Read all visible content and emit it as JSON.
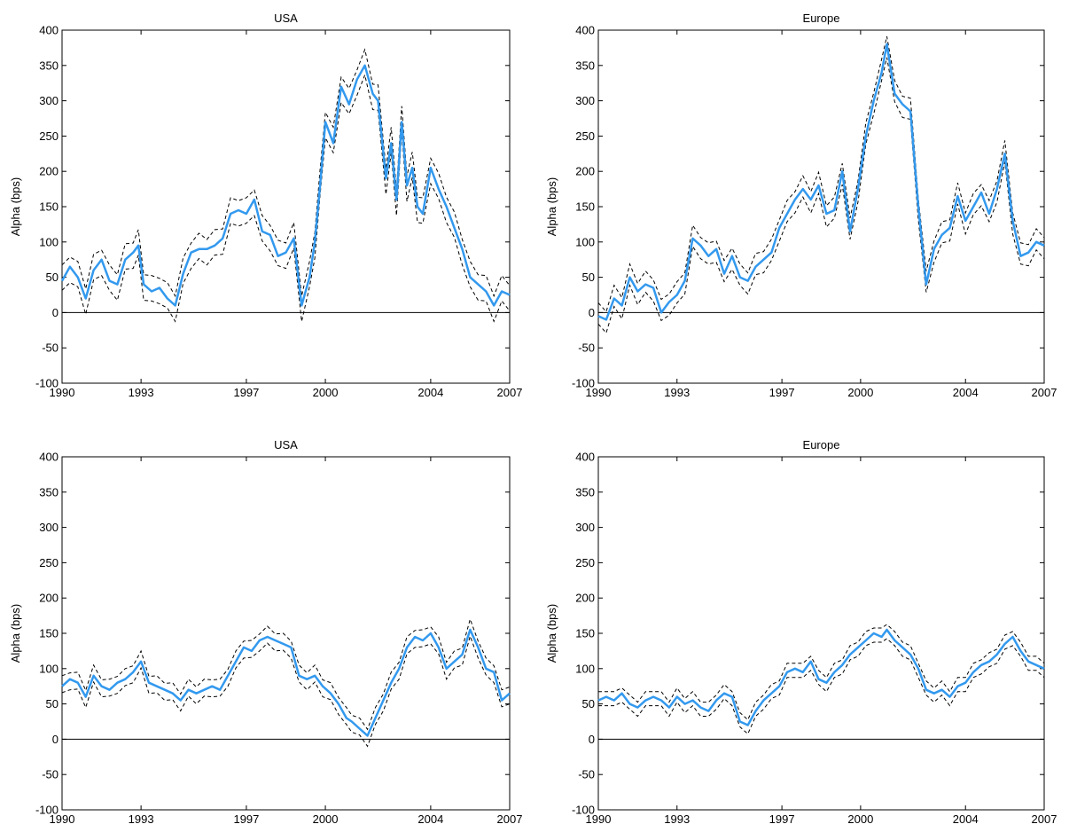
{
  "colors": {
    "mean_line": "#3399ee",
    "band_line": "#000000",
    "axis": "#000000",
    "zero_line": "#000000"
  },
  "chart_data": [
    {
      "type": "line",
      "title": "USA",
      "xlabel": "",
      "ylabel": "Alpha (bps)",
      "xlim": [
        1990,
        2007
      ],
      "ylim": [
        -100,
        400
      ],
      "xticks": [
        1990,
        1993,
        1997,
        2000,
        2004,
        2007
      ],
      "yticks": [
        -100,
        -50,
        0,
        50,
        100,
        150,
        200,
        250,
        300,
        350,
        400
      ],
      "grid": false,
      "zero_line": 0,
      "band_width": 18,
      "series": [
        {
          "style": "mean",
          "x": [
            1990.0,
            1990.3,
            1990.6,
            1990.9,
            1991.2,
            1991.5,
            1991.8,
            1992.1,
            1992.4,
            1992.7,
            1992.9,
            1993.1,
            1993.4,
            1993.7,
            1994.0,
            1994.3,
            1994.6,
            1994.9,
            1995.2,
            1995.5,
            1995.8,
            1996.1,
            1996.4,
            1996.7,
            1997.0,
            1997.3,
            1997.6,
            1997.9,
            1998.2,
            1998.5,
            1998.8,
            1999.1,
            1999.4,
            1999.6,
            1999.8,
            2000.0,
            2000.3,
            2000.6,
            2000.9,
            2001.2,
            2001.5,
            2001.8,
            2002.0,
            2002.3,
            2002.5,
            2002.7,
            2002.9,
            2003.1,
            2003.3,
            2003.5,
            2003.7,
            2004.0,
            2004.3,
            2004.6,
            2004.9,
            2005.2,
            2005.5,
            2005.8,
            2006.1,
            2006.4,
            2006.7,
            2007.0
          ],
          "y": [
            45,
            65,
            50,
            20,
            60,
            75,
            45,
            40,
            75,
            85,
            95,
            40,
            30,
            35,
            20,
            10,
            55,
            85,
            90,
            90,
            95,
            105,
            140,
            145,
            140,
            160,
            115,
            110,
            80,
            85,
            105,
            10,
            50,
            100,
            180,
            270,
            240,
            320,
            295,
            330,
            350,
            310,
            300,
            190,
            240,
            160,
            270,
            180,
            205,
            150,
            140,
            205,
            175,
            150,
            120,
            90,
            50,
            40,
            30,
            10,
            30,
            25
          ]
        }
      ]
    },
    {
      "type": "line",
      "title": "Europe",
      "xlabel": "",
      "ylabel": "Alpha (bps)",
      "xlim": [
        1990,
        2007
      ],
      "ylim": [
        -100,
        400
      ],
      "xticks": [
        1990,
        1993,
        1997,
        2000,
        2004,
        2007
      ],
      "yticks": [
        -100,
        -50,
        0,
        50,
        100,
        150,
        200,
        250,
        300,
        350,
        400
      ],
      "grid": false,
      "zero_line": 0,
      "band_width": 15,
      "series": [
        {
          "style": "mean",
          "x": [
            1990.0,
            1990.3,
            1990.6,
            1990.9,
            1991.2,
            1991.5,
            1991.8,
            1992.1,
            1992.4,
            1992.7,
            1993.0,
            1993.3,
            1993.6,
            1993.9,
            1994.2,
            1994.5,
            1994.8,
            1995.1,
            1995.4,
            1995.7,
            1996.0,
            1996.3,
            1996.6,
            1996.9,
            1997.2,
            1997.5,
            1997.8,
            1998.1,
            1998.4,
            1998.7,
            1999.0,
            1999.3,
            1999.6,
            1999.9,
            2000.2,
            2000.5,
            2000.8,
            2001.0,
            2001.3,
            2001.6,
            2001.9,
            2002.2,
            2002.5,
            2002.8,
            2003.1,
            2003.4,
            2003.7,
            2004.0,
            2004.3,
            2004.6,
            2004.9,
            2005.2,
            2005.5,
            2005.8,
            2006.1,
            2006.4,
            2006.7,
            2007.0
          ],
          "y": [
            -5,
            -10,
            20,
            10,
            50,
            30,
            40,
            35,
            0,
            15,
            25,
            45,
            105,
            95,
            80,
            90,
            55,
            80,
            50,
            45,
            65,
            75,
            85,
            120,
            140,
            160,
            175,
            160,
            180,
            140,
            145,
            200,
            115,
            175,
            250,
            300,
            340,
            380,
            310,
            295,
            285,
            150,
            40,
            90,
            110,
            120,
            165,
            130,
            150,
            170,
            140,
            175,
            225,
            130,
            80,
            85,
            100,
            95
          ]
        }
      ]
    },
    {
      "type": "line",
      "title": "USA",
      "xlabel": "",
      "ylabel": "Alpha (bps)",
      "xlim": [
        1990,
        2007
      ],
      "ylim": [
        -100,
        400
      ],
      "xticks": [
        1990,
        1993,
        1997,
        2000,
        2004,
        2007
      ],
      "yticks": [
        -100,
        -50,
        0,
        50,
        100,
        150,
        200,
        250,
        300,
        350,
        400
      ],
      "grid": false,
      "zero_line": 0,
      "band_width": 12,
      "series": [
        {
          "style": "mean",
          "x": [
            1990.0,
            1990.3,
            1990.6,
            1990.9,
            1991.2,
            1991.5,
            1991.8,
            1992.1,
            1992.4,
            1992.7,
            1993.0,
            1993.3,
            1993.6,
            1993.9,
            1994.2,
            1994.5,
            1994.8,
            1995.1,
            1995.4,
            1995.7,
            1996.0,
            1996.3,
            1996.6,
            1996.9,
            1997.2,
            1997.5,
            1997.8,
            1998.1,
            1998.4,
            1998.7,
            1999.0,
            1999.3,
            1999.6,
            1999.9,
            2000.2,
            2000.5,
            2000.8,
            2001.0,
            2001.3,
            2001.6,
            2001.9,
            2002.2,
            2002.5,
            2002.8,
            2003.1,
            2003.4,
            2003.7,
            2004.0,
            2004.3,
            2004.6,
            2004.9,
            2005.2,
            2005.5,
            2005.8,
            2006.1,
            2006.4,
            2006.7,
            2007.0
          ],
          "y": [
            75,
            85,
            80,
            60,
            90,
            75,
            70,
            80,
            85,
            95,
            110,
            80,
            75,
            70,
            65,
            55,
            70,
            65,
            70,
            75,
            70,
            90,
            110,
            130,
            125,
            140,
            145,
            140,
            135,
            130,
            90,
            85,
            90,
            75,
            65,
            50,
            30,
            25,
            15,
            5,
            30,
            55,
            80,
            100,
            130,
            145,
            140,
            150,
            130,
            100,
            110,
            120,
            155,
            130,
            100,
            95,
            55,
            65
          ]
        }
      ]
    },
    {
      "type": "line",
      "title": "Europe",
      "xlabel": "",
      "ylabel": "Alpha (bps)",
      "xlim": [
        1990,
        2007
      ],
      "ylim": [
        -100,
        400
      ],
      "xticks": [
        1990,
        1993,
        1997,
        2000,
        2004,
        2007
      ],
      "yticks": [
        -100,
        -50,
        0,
        50,
        100,
        150,
        200,
        250,
        300,
        350,
        400
      ],
      "grid": false,
      "zero_line": 0,
      "band_width": 10,
      "series": [
        {
          "style": "mean",
          "x": [
            1990.0,
            1990.3,
            1990.6,
            1990.9,
            1991.2,
            1991.5,
            1991.8,
            1992.1,
            1992.4,
            1992.7,
            1993.0,
            1993.3,
            1993.6,
            1993.9,
            1994.2,
            1994.5,
            1994.8,
            1995.1,
            1995.4,
            1995.7,
            1996.0,
            1996.3,
            1996.6,
            1996.9,
            1997.2,
            1997.5,
            1997.8,
            1998.1,
            1998.4,
            1998.7,
            1999.0,
            1999.3,
            1999.6,
            1999.9,
            2000.2,
            2000.5,
            2000.8,
            2001.0,
            2001.3,
            2001.6,
            2001.9,
            2002.2,
            2002.5,
            2002.8,
            2003.1,
            2003.4,
            2003.7,
            2004.0,
            2004.3,
            2004.6,
            2004.9,
            2005.2,
            2005.5,
            2005.8,
            2006.1,
            2006.4,
            2006.7,
            2007.0
          ],
          "y": [
            55,
            60,
            55,
            65,
            50,
            45,
            55,
            60,
            55,
            45,
            60,
            50,
            55,
            45,
            40,
            55,
            65,
            60,
            25,
            20,
            40,
            55,
            65,
            75,
            95,
            100,
            95,
            110,
            85,
            80,
            95,
            105,
            120,
            130,
            140,
            150,
            145,
            155,
            140,
            130,
            120,
            100,
            70,
            65,
            70,
            60,
            75,
            80,
            95,
            105,
            110,
            120,
            135,
            145,
            125,
            110,
            105,
            100
          ]
        }
      ]
    }
  ]
}
